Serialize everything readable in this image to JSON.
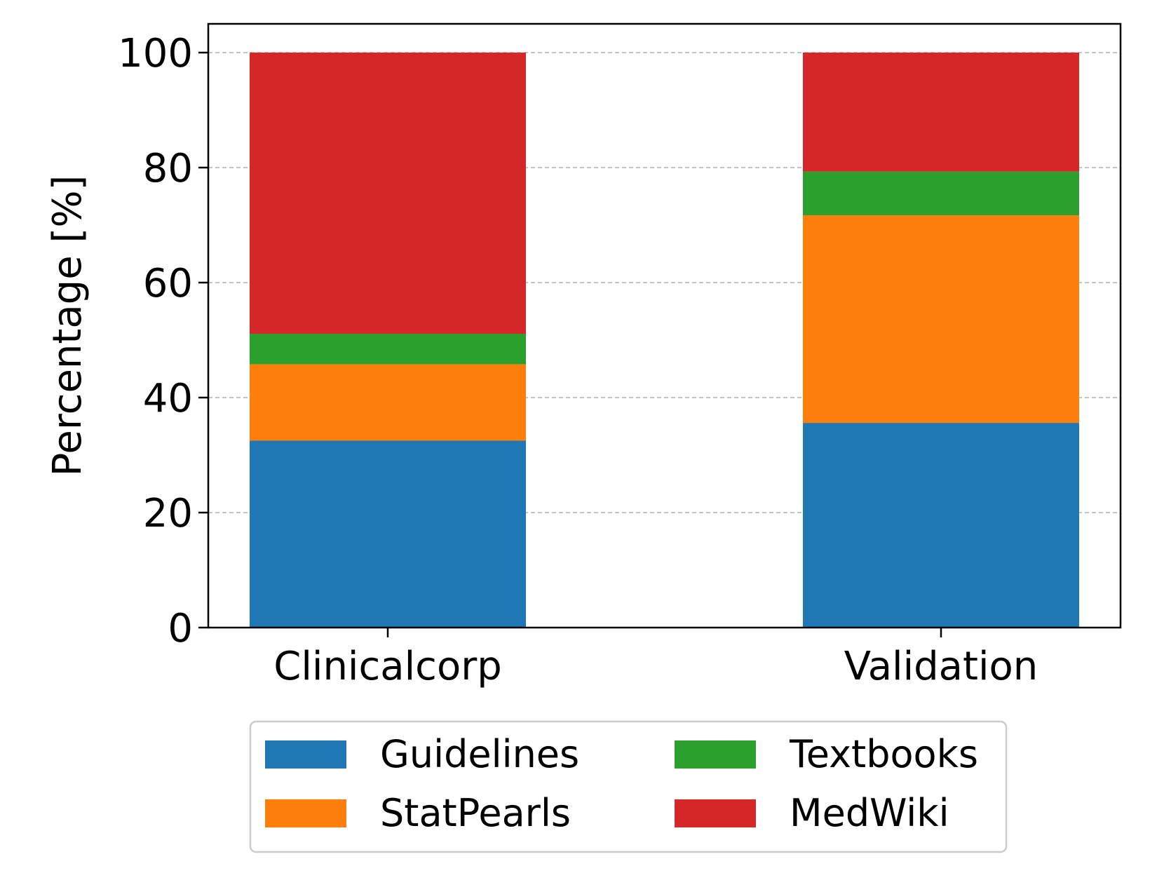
{
  "chart_data": {
    "type": "bar",
    "stacked": true,
    "title": "",
    "xlabel": "",
    "ylabel": "Percentage [%]",
    "ylim": [
      0,
      105
    ],
    "yticks": [
      0,
      20,
      40,
      60,
      80,
      100
    ],
    "grid": "y, dashed",
    "categories": [
      "Clinicalcorp",
      "Validation"
    ],
    "series": [
      {
        "name": "Guidelines",
        "color": "#1f77b4",
        "values": [
          32.5,
          35.6
        ]
      },
      {
        "name": "StatPearls",
        "color": "#ff7f0e",
        "values": [
          13.3,
          36.1
        ]
      },
      {
        "name": "Textbooks",
        "color": "#2ca02c",
        "values": [
          5.3,
          7.6
        ]
      },
      {
        "name": "MedWiki",
        "color": "#d62728",
        "values": [
          48.9,
          20.7
        ]
      }
    ],
    "legend": {
      "position": "bottom-center, below axes",
      "columns": 2
    }
  }
}
